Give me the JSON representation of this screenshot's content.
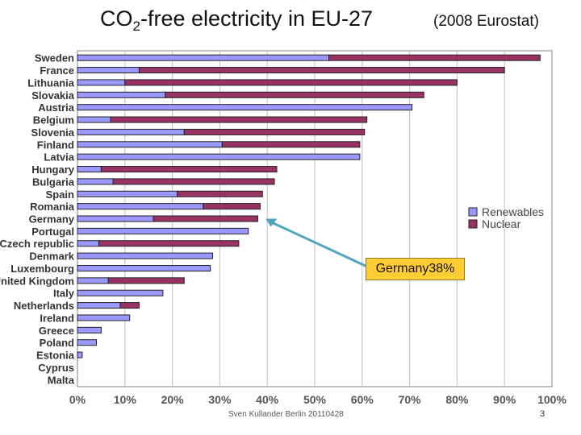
{
  "title": {
    "prefix": "CO",
    "subscript": "2",
    "suffix": "-free electricity in EU-27"
  },
  "subtitle": "(2008 Eurostat)",
  "footer": "Sven Kullander Berlin 20110428",
  "page_number": "3",
  "callout": "Germany38%",
  "colors": {
    "renewables": "#9999ff",
    "nuclear": "#993366",
    "callout_fill": "#ffcc33",
    "arrow": "#4fa6c0"
  },
  "chart_data": {
    "type": "bar",
    "orientation": "horizontal",
    "stacked": true,
    "title": "",
    "xlabel": "",
    "ylabel": "",
    "xlim": [
      0,
      100
    ],
    "x_ticks": [
      "0%",
      "10%",
      "20%",
      "30%",
      "40%",
      "50%",
      "60%",
      "70%",
      "80%",
      "90%",
      "100%"
    ],
    "grid": true,
    "legend_position": "right",
    "categories": [
      "Sweden",
      "France",
      "Lithuania",
      "Slovakia",
      "Austria",
      "Belgium",
      "Slovenia",
      "Finland",
      "Latvia",
      "Hungary",
      "Bulgaria",
      "Spain",
      "Romania",
      "Germany",
      "Portugal",
      "Czech republic",
      "Denmark",
      "Luxembourg",
      "United Kingdom",
      "Italy",
      "Netherlands",
      "Ireland",
      "Greece",
      "Poland",
      "Estonia",
      "Cyprus",
      "Malta"
    ],
    "series": [
      {
        "name": "Renewables",
        "values": [
          53,
          13,
          10,
          18.5,
          70.5,
          7,
          22.5,
          30.5,
          59.5,
          5,
          7.5,
          21,
          26.5,
          16,
          36,
          4.5,
          28.5,
          28,
          6.5,
          18,
          9,
          11,
          5,
          4,
          1,
          0,
          0
        ]
      },
      {
        "name": "Nuclear",
        "values": [
          44.5,
          77,
          70,
          54.5,
          0,
          54,
          38,
          29,
          0,
          37,
          34,
          18,
          12,
          22,
          0,
          29.5,
          0,
          0,
          16,
          0,
          4,
          0,
          0,
          0,
          0,
          0,
          0
        ]
      }
    ]
  }
}
